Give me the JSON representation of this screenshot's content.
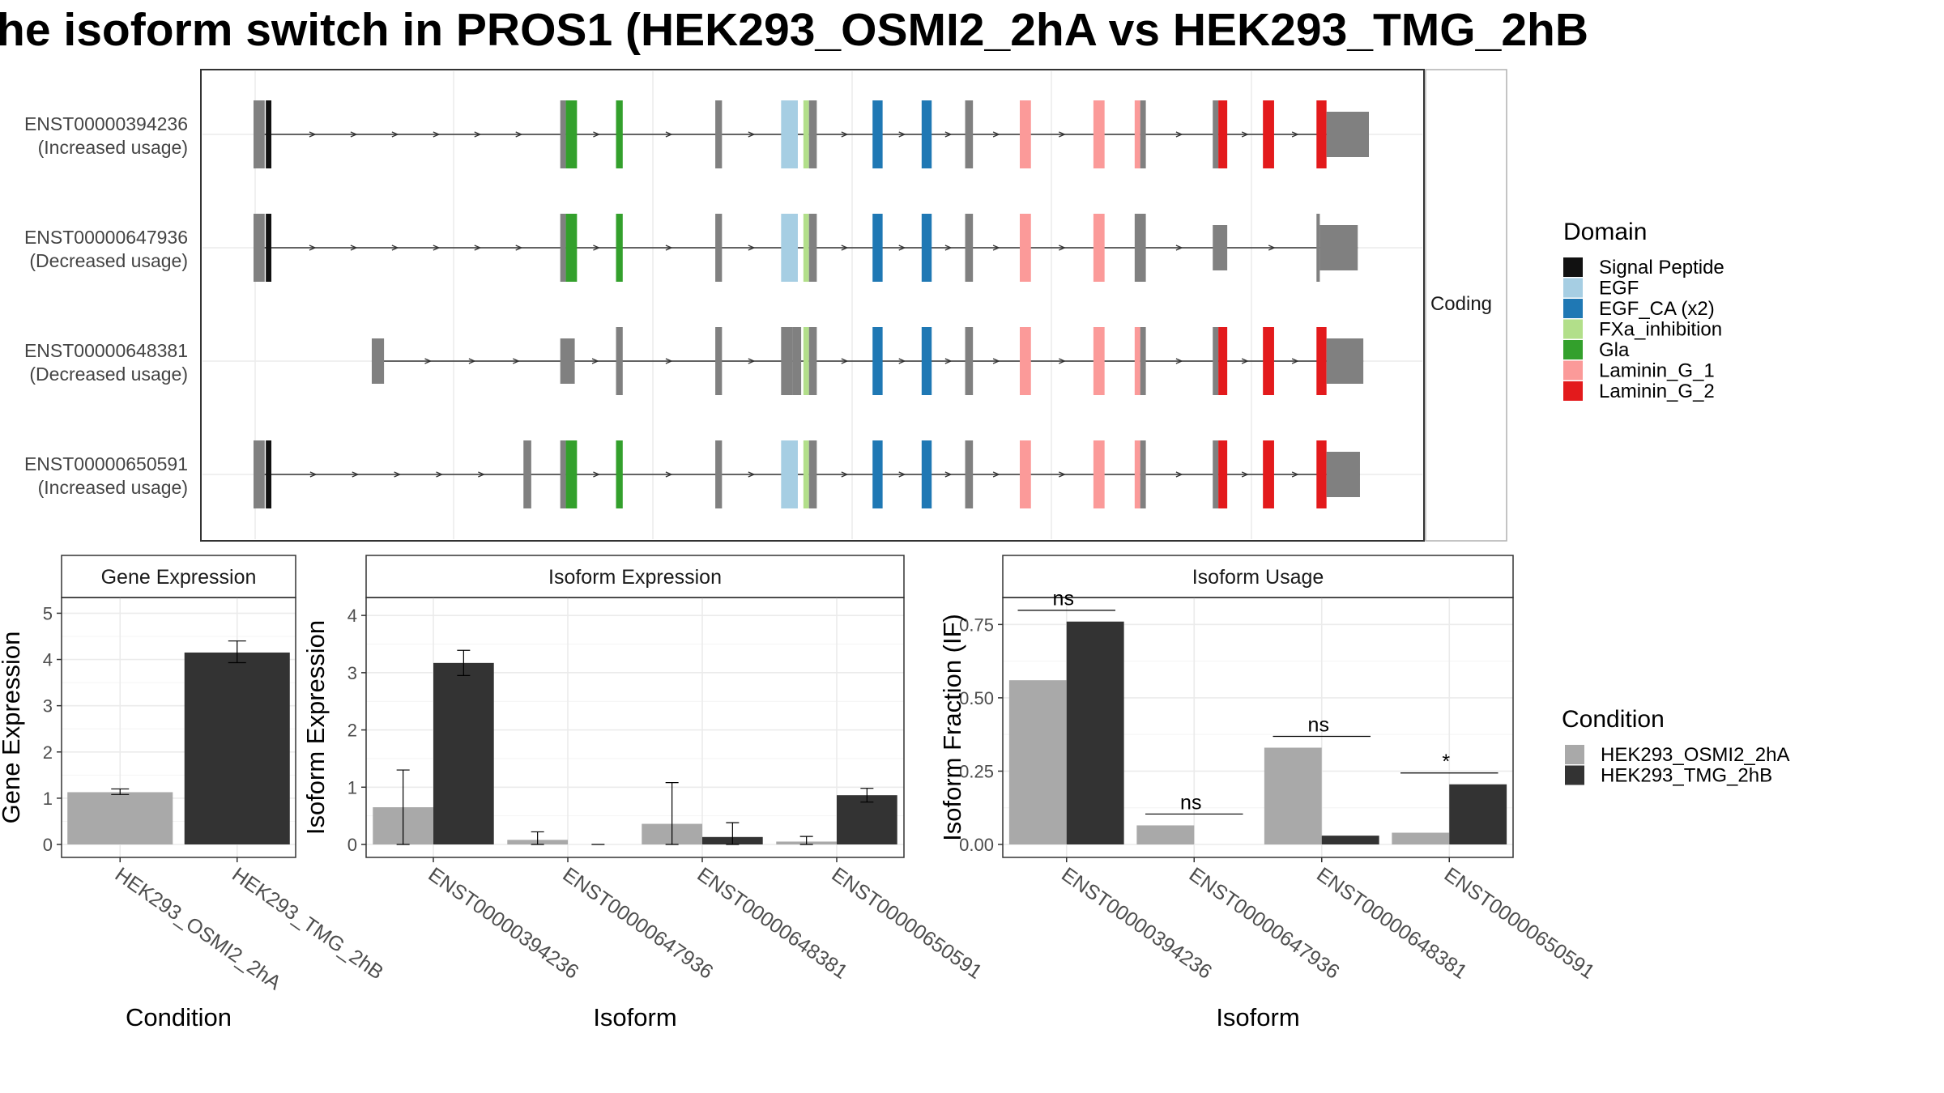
{
  "title": "he isoform switch in PROS1 (HEK293_OSMI2_2hA vs HEK293_TMG_2hB",
  "colors": {
    "Signal Peptide": "#111111",
    "EGF": "#a6cee3",
    "EGF_CA (x2)": "#1f78b4",
    "FXa_inhibition": "#b2df8a",
    "Gla": "#33a02c",
    "Laminin_G_1": "#fb9a99",
    "Laminin_G_2": "#e31a1c",
    "noncoding": "#808080",
    "osmi": "#a9a9a9",
    "tmg": "#333333"
  },
  "structure": {
    "facet_label": "Coding",
    "transcripts": [
      {
        "id": "ENST00000394236",
        "usage": "(Increased usage)",
        "start": 0.0,
        "end": 1.0,
        "exons": [
          [
            0.0,
            0.01,
            "noncoding"
          ],
          [
            0.011,
            0.016,
            "Signal Peptide"
          ],
          [
            0.275,
            0.28,
            "noncoding"
          ],
          [
            0.28,
            0.29,
            "Gla"
          ],
          [
            0.325,
            0.331,
            "Gla"
          ],
          [
            0.414,
            0.42,
            "noncoding"
          ],
          [
            0.473,
            0.488,
            "EGF"
          ],
          [
            0.493,
            0.498,
            "FXa_inhibition"
          ],
          [
            0.498,
            0.505,
            "noncoding"
          ],
          [
            0.555,
            0.564,
            "EGF_CA (x2)"
          ],
          [
            0.599,
            0.608,
            "EGF_CA (x2)"
          ],
          [
            0.638,
            0.645,
            "noncoding"
          ],
          [
            0.687,
            0.697,
            "Laminin_G_1"
          ],
          [
            0.753,
            0.763,
            "Laminin_G_1"
          ],
          [
            0.79,
            0.795,
            "Laminin_G_1"
          ],
          [
            0.795,
            0.8,
            "noncoding"
          ],
          [
            0.86,
            0.865,
            "noncoding"
          ],
          [
            0.865,
            0.873,
            "Laminin_G_2"
          ],
          [
            0.905,
            0.915,
            "Laminin_G_2"
          ],
          [
            0.953,
            0.962,
            "Laminin_G_2"
          ],
          [
            0.962,
            1.0,
            "noncoding",
            "tall"
          ]
        ]
      },
      {
        "id": "ENST00000647936",
        "usage": "(Decreased usage)",
        "start": 0.0,
        "end": 0.99,
        "exons": [
          [
            0.0,
            0.01,
            "noncoding"
          ],
          [
            0.011,
            0.016,
            "Signal Peptide"
          ],
          [
            0.275,
            0.28,
            "noncoding"
          ],
          [
            0.28,
            0.29,
            "Gla"
          ],
          [
            0.325,
            0.331,
            "Gla"
          ],
          [
            0.414,
            0.42,
            "noncoding"
          ],
          [
            0.473,
            0.488,
            "EGF"
          ],
          [
            0.493,
            0.498,
            "FXa_inhibition"
          ],
          [
            0.498,
            0.505,
            "noncoding"
          ],
          [
            0.555,
            0.564,
            "EGF_CA (x2)"
          ],
          [
            0.599,
            0.608,
            "EGF_CA (x2)"
          ],
          [
            0.638,
            0.645,
            "noncoding"
          ],
          [
            0.687,
            0.697,
            "Laminin_G_1"
          ],
          [
            0.753,
            0.763,
            "Laminin_G_1"
          ],
          [
            0.79,
            0.8,
            "noncoding"
          ],
          [
            0.86,
            0.873,
            "noncoding"
          ],
          [
            0.953,
            0.956,
            "noncoding"
          ],
          [
            0.956,
            0.99,
            "noncoding",
            "tall"
          ]
        ]
      },
      {
        "id": "ENST00000648381",
        "usage": "(Decreased usage)",
        "start": 0.106,
        "end": 0.995,
        "exons": [
          [
            0.106,
            0.117,
            "noncoding"
          ],
          [
            0.275,
            0.288,
            "noncoding"
          ],
          [
            0.325,
            0.331,
            "noncoding"
          ],
          [
            0.414,
            0.42,
            "noncoding"
          ],
          [
            0.473,
            0.483,
            "noncoding"
          ],
          [
            0.483,
            0.491,
            "noncoding"
          ],
          [
            0.493,
            0.498,
            "FXa_inhibition"
          ],
          [
            0.498,
            0.505,
            "noncoding"
          ],
          [
            0.555,
            0.564,
            "EGF_CA (x2)"
          ],
          [
            0.599,
            0.608,
            "EGF_CA (x2)"
          ],
          [
            0.638,
            0.645,
            "noncoding"
          ],
          [
            0.687,
            0.697,
            "Laminin_G_1"
          ],
          [
            0.753,
            0.763,
            "Laminin_G_1"
          ],
          [
            0.79,
            0.795,
            "Laminin_G_1"
          ],
          [
            0.795,
            0.8,
            "noncoding"
          ],
          [
            0.86,
            0.865,
            "noncoding"
          ],
          [
            0.865,
            0.873,
            "Laminin_G_2"
          ],
          [
            0.905,
            0.915,
            "Laminin_G_2"
          ],
          [
            0.953,
            0.962,
            "Laminin_G_2"
          ],
          [
            0.962,
            0.995,
            "noncoding",
            "tall"
          ]
        ]
      },
      {
        "id": "ENST00000650591",
        "usage": "(Increased usage)",
        "start": 0.0,
        "end": 0.992,
        "exons": [
          [
            0.0,
            0.01,
            "noncoding"
          ],
          [
            0.011,
            0.016,
            "Signal Peptide"
          ],
          [
            0.242,
            0.249,
            "noncoding"
          ],
          [
            0.275,
            0.28,
            "noncoding"
          ],
          [
            0.28,
            0.29,
            "Gla"
          ],
          [
            0.325,
            0.331,
            "Gla"
          ],
          [
            0.414,
            0.42,
            "noncoding"
          ],
          [
            0.473,
            0.488,
            "EGF"
          ],
          [
            0.493,
            0.498,
            "FXa_inhibition"
          ],
          [
            0.498,
            0.505,
            "noncoding"
          ],
          [
            0.555,
            0.564,
            "EGF_CA (x2)"
          ],
          [
            0.599,
            0.608,
            "EGF_CA (x2)"
          ],
          [
            0.638,
            0.645,
            "noncoding"
          ],
          [
            0.687,
            0.697,
            "Laminin_G_1"
          ],
          [
            0.753,
            0.763,
            "Laminin_G_1"
          ],
          [
            0.79,
            0.795,
            "Laminin_G_1"
          ],
          [
            0.795,
            0.8,
            "noncoding"
          ],
          [
            0.86,
            0.865,
            "noncoding"
          ],
          [
            0.865,
            0.873,
            "Laminin_G_2"
          ],
          [
            0.905,
            0.915,
            "Laminin_G_2"
          ],
          [
            0.953,
            0.962,
            "Laminin_G_2"
          ],
          [
            0.962,
            0.992,
            "noncoding",
            "tall"
          ]
        ]
      }
    ]
  },
  "domain_legend": {
    "title": "Domain",
    "items": [
      "Signal Peptide",
      "EGF",
      "EGF_CA (x2)",
      "FXa_inhibition",
      "Gla",
      "Laminin_G_1",
      "Laminin_G_2"
    ]
  },
  "condition_legend": {
    "title": "Condition",
    "items": [
      "HEK293_OSMI2_2hA",
      "HEK293_TMG_2hB"
    ]
  },
  "chart_data": [
    {
      "type": "bar",
      "title": "Gene Expression",
      "xlabel": "Condition",
      "ylabel": "Gene Expression",
      "categories": [
        "HEK293_OSMI2_2hA",
        "HEK293_TMG_2hB"
      ],
      "values": [
        1.13,
        4.15
      ],
      "errors": [
        [
          1.08,
          1.2
        ],
        [
          3.93,
          4.4
        ]
      ],
      "ylim": [
        0,
        5.2
      ],
      "yticks": [
        0,
        1,
        2,
        3,
        4,
        5
      ]
    },
    {
      "type": "bar",
      "title": "Isoform Expression",
      "xlabel": "Isoform",
      "ylabel": "Isoform Expression",
      "categories": [
        "ENST00000394236",
        "ENST00000647936",
        "ENST00000648381",
        "ENST00000650591"
      ],
      "series": [
        {
          "name": "HEK293_OSMI2_2hA",
          "values": [
            0.65,
            0.08,
            0.36,
            0.05
          ],
          "errors": [
            [
              0.0,
              1.3
            ],
            [
              0.0,
              0.22
            ],
            [
              0.0,
              1.08
            ],
            [
              0.0,
              0.14
            ]
          ]
        },
        {
          "name": "HEK293_TMG_2hB",
          "values": [
            3.17,
            0.0,
            0.13,
            0.86
          ],
          "errors": [
            [
              2.95,
              3.39
            ],
            [
              0.0,
              0.0
            ],
            [
              0.0,
              0.38
            ],
            [
              0.74,
              0.98
            ]
          ]
        }
      ],
      "ylim": [
        0,
        4.2
      ],
      "yticks": [
        0,
        1,
        2,
        3,
        4
      ]
    },
    {
      "type": "bar",
      "title": "Isoform Usage",
      "xlabel": "Isoform",
      "ylabel": "Isoform Fraction (IF)",
      "categories": [
        "ENST00000394236",
        "ENST00000647936",
        "ENST00000648381",
        "ENST00000650591"
      ],
      "series": [
        {
          "name": "HEK293_OSMI2_2hA",
          "values": [
            0.56,
            0.065,
            0.33,
            0.04
          ]
        },
        {
          "name": "HEK293_TMG_2hB",
          "values": [
            0.76,
            0.0,
            0.03,
            0.205
          ]
        }
      ],
      "significance": [
        "ns",
        "ns",
        "ns",
        "*"
      ],
      "ylim": [
        0,
        0.82
      ],
      "yticks": [
        "0.00",
        "0.25",
        "0.50",
        "0.75"
      ],
      "ytick_values": [
        0,
        0.25,
        0.5,
        0.75
      ]
    }
  ]
}
